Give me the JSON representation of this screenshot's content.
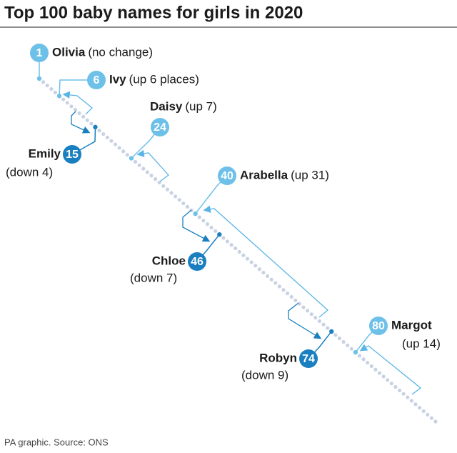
{
  "title": "Top 100 baby names for girls in 2020",
  "entries": [
    {
      "rank": 1,
      "name": "Olivia",
      "change": "(no change)"
    },
    {
      "rank": 6,
      "name": "Ivy",
      "change": "(up 6 places)"
    },
    {
      "rank": 15,
      "name": "Emily",
      "change": "(down 4)"
    },
    {
      "rank": 24,
      "name": "Daisy",
      "change": "(up 7)"
    },
    {
      "rank": 40,
      "name": "Arabella",
      "change": "(up 31)"
    },
    {
      "rank": 46,
      "name": "Chloe",
      "change": "(down 7)"
    },
    {
      "rank": 74,
      "name": "Robyn",
      "change": "(down 9)"
    },
    {
      "rank": 80,
      "name": "Margot",
      "change": "(up 14)"
    }
  ],
  "source": "PA graphic. Source: ONS"
}
